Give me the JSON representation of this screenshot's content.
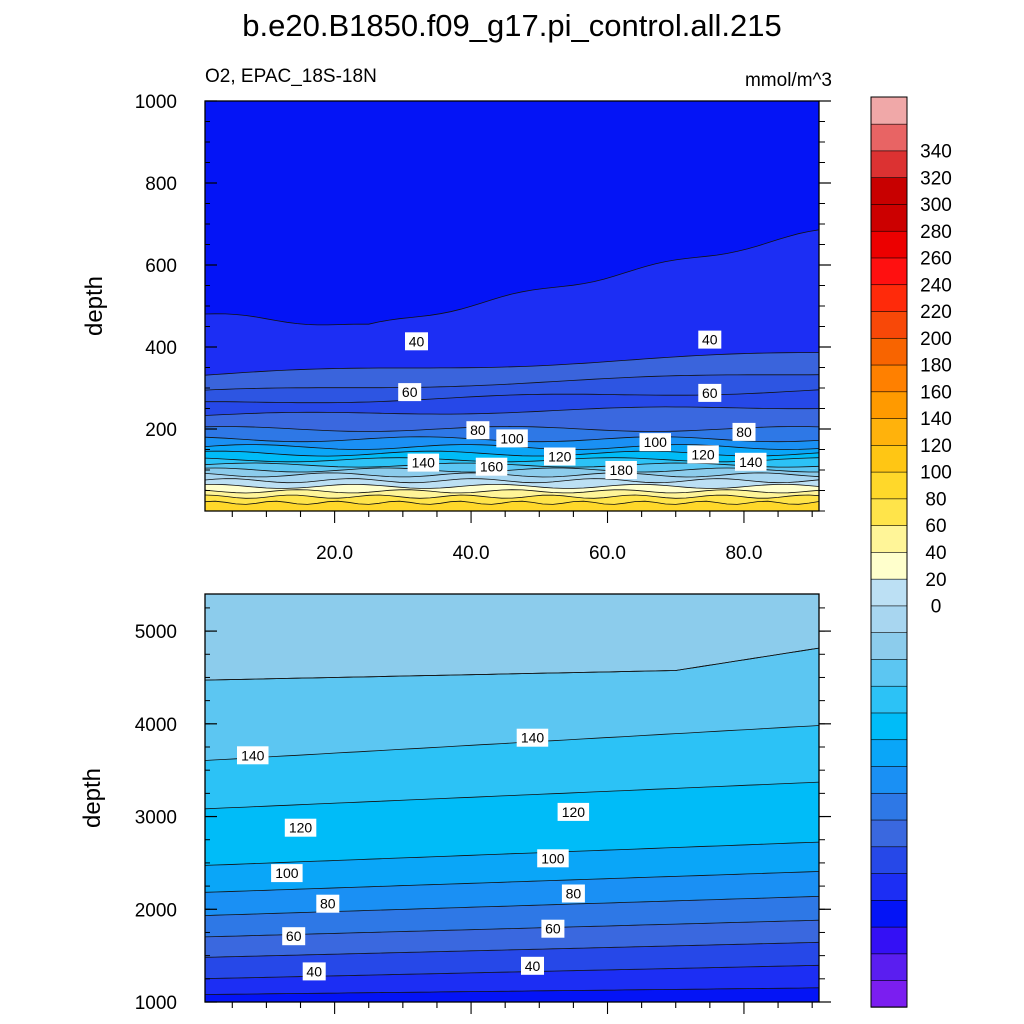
{
  "title": "b.e20.B1850.f09_g17.pi_control.all.215",
  "chart_data": [
    {
      "type": "contour",
      "panel": "upper",
      "variable_label": "O2, EPAC_18S-18N",
      "units": "mmol/m^3",
      "ylabel": "depth",
      "xlim": [
        1,
        91
      ],
      "ylim": [
        1000,
        0
      ],
      "x_ticks": [
        "20.0",
        "40.0",
        "60.0",
        "80.0"
      ],
      "x_tick_values": [
        20,
        40,
        60,
        80
      ],
      "y_ticks": [
        "200",
        "400",
        "600",
        "800",
        "1000"
      ],
      "y_tick_values": [
        200,
        400,
        600,
        800,
        1000
      ],
      "contour_labels": [
        {
          "text": "140",
          "x": 33,
          "y": 118
        },
        {
          "text": "160",
          "x": 43,
          "y": 108
        },
        {
          "text": "120",
          "x": 53,
          "y": 133
        },
        {
          "text": "180",
          "x": 62,
          "y": 100
        },
        {
          "text": "120",
          "x": 74,
          "y": 138
        },
        {
          "text": "140",
          "x": 81,
          "y": 120
        },
        {
          "text": "80",
          "x": 41,
          "y": 197
        },
        {
          "text": "100",
          "x": 46,
          "y": 177
        },
        {
          "text": "100",
          "x": 67,
          "y": 168
        },
        {
          "text": "80",
          "x": 80,
          "y": 193
        },
        {
          "text": "60",
          "x": 31,
          "y": 290
        },
        {
          "text": "60",
          "x": 75,
          "y": 288
        },
        {
          "text": "40",
          "x": 32,
          "y": 414
        },
        {
          "text": "40",
          "x": 75,
          "y": 418
        }
      ]
    },
    {
      "type": "contour",
      "panel": "lower",
      "ylabel": "depth",
      "xlim": [
        1,
        91
      ],
      "ylim": [
        5400,
        1000
      ],
      "y_ticks": [
        "1000",
        "2000",
        "3000",
        "4000",
        "5000"
      ],
      "y_tick_values": [
        1000,
        2000,
        3000,
        4000,
        5000
      ],
      "contour_labels": [
        {
          "text": "40",
          "x": 17,
          "y": 1330
        },
        {
          "text": "40",
          "x": 49,
          "y": 1390
        },
        {
          "text": "60",
          "x": 14,
          "y": 1710
        },
        {
          "text": "60",
          "x": 52,
          "y": 1790
        },
        {
          "text": "80",
          "x": 19,
          "y": 2060
        },
        {
          "text": "80",
          "x": 55,
          "y": 2170
        },
        {
          "text": "100",
          "x": 13,
          "y": 2390
        },
        {
          "text": "100",
          "x": 52,
          "y": 2550
        },
        {
          "text": "120",
          "x": 15,
          "y": 2880
        },
        {
          "text": "120",
          "x": 55,
          "y": 3050
        },
        {
          "text": "140",
          "x": 8,
          "y": 3660
        },
        {
          "text": "140",
          "x": 49,
          "y": 3850
        }
      ]
    }
  ],
  "colorbar": {
    "labels": [
      "340",
      "320",
      "300",
      "280",
      "260",
      "240",
      "220",
      "200",
      "180",
      "160",
      "140",
      "120",
      "100",
      "80",
      "60",
      "40",
      "20",
      "0"
    ],
    "colors": [
      "#7B1EF0",
      "#5A1EF0",
      "#3410F5",
      "#0414F6",
      "#1C2EF4",
      "#2648E8",
      "#3A68DF",
      "#2E78E6",
      "#1A90F4",
      "#0AA6F8",
      "#00BCF8",
      "#2CC2F6",
      "#5CC6F2",
      "#8CCCEC",
      "#A8D6F0",
      "#BCE0F4",
      "#FFFFCC",
      "#FFF598",
      "#FFE44A",
      "#FFD82A",
      "#FFC614",
      "#FFB20C",
      "#FF9A00",
      "#FF8000",
      "#F86400",
      "#F84808",
      "#FF2A0A",
      "#FF1010",
      "#EC0000",
      "#CC0000",
      "#C80000",
      "#DC3232",
      "#E86464",
      "#F0A8A8"
    ]
  }
}
